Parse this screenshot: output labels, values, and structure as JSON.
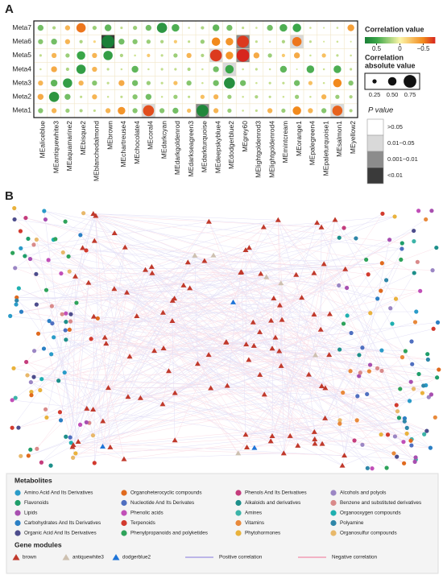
{
  "panel_labels": [
    "A",
    "B"
  ],
  "chart_data": {
    "type": "heatmap",
    "rows": [
      "Meta7",
      "Meta6",
      "Meta5",
      "Meta4",
      "Meta3",
      "Meta2",
      "Meta1"
    ],
    "columns": [
      "MEaliceblue",
      "MEantiquewhite3",
      "MEaquamarine2",
      "MEbisque2",
      "MEblanchedalmond",
      "MEbrown",
      "MEchartreuse4",
      "MEchocolate4",
      "MEcoral4",
      "MEdarkcyan",
      "MEdarkgoldenrod",
      "MEdarkseagreen3",
      "MEdarkturquoise",
      "MEdeepskyblue4",
      "MEdodgerblue2",
      "MEgrey60",
      "MElightgoldenrod3",
      "MElightgoldenrod4",
      "MEmintcream",
      "MEorange1",
      "MEpalegreen4",
      "MEpaleturquoise1",
      "MEsalmon1",
      "MEyellow2"
    ],
    "values": [
      [
        0.35,
        0.2,
        -0.3,
        -0.55,
        0.25,
        0.4,
        0.15,
        0.25,
        0.35,
        0.6,
        0.45,
        0.12,
        0.2,
        0.4,
        0.35,
        0.15,
        0.12,
        0.35,
        0.45,
        0.5,
        0.12,
        0.1,
        0.12,
        -0.4
      ],
      [
        0.3,
        0.35,
        -0.3,
        0.2,
        -0.15,
        0.75,
        0.35,
        0.3,
        0.25,
        0.2,
        -0.2,
        0.15,
        0.25,
        -0.5,
        -0.45,
        -0.7,
        0.15,
        0.12,
        0.2,
        -0.55,
        0.15,
        0.1,
        0.12,
        0.1
      ],
      [
        0.15,
        -0.3,
        0.25,
        0.5,
        -0.3,
        0.55,
        0.2,
        0.12,
        -0.2,
        0.15,
        0.25,
        -0.3,
        0.2,
        -0.7,
        -0.45,
        -0.75,
        -0.35,
        0.25,
        -0.2,
        -0.35,
        0.12,
        -0.25,
        0.15,
        0.12
      ],
      [
        0.12,
        -0.35,
        0.2,
        0.55,
        -0.3,
        0.15,
        0.12,
        0.4,
        0.12,
        0.15,
        0.15,
        0.2,
        0.12,
        0.35,
        0.5,
        0.12,
        0.15,
        0.12,
        0.4,
        0.1,
        0.45,
        0.12,
        0.45,
        0.15
      ],
      [
        -0.3,
        0.4,
        0.55,
        -0.3,
        0.3,
        0.15,
        -0.35,
        0.35,
        0.25,
        0.15,
        -0.25,
        0.3,
        0.12,
        0.35,
        0.65,
        0.35,
        0.12,
        0.15,
        0.15,
        0.35,
        -0.25,
        0.12,
        -0.5,
        0.3
      ],
      [
        -0.35,
        0.6,
        0.35,
        0.15,
        -0.3,
        0.12,
        0.15,
        0.3,
        0.35,
        0.12,
        0.25,
        0.15,
        -0.25,
        -0.3,
        0.25,
        0.12,
        0.2,
        0.15,
        0.12,
        0.25,
        0.12,
        -0.3,
        0.25,
        0.2
      ],
      [
        0.3,
        -0.3,
        0.25,
        0.2,
        0.15,
        -0.3,
        -0.45,
        0.3,
        -0.65,
        0.3,
        0.35,
        -0.25,
        0.7,
        -0.3,
        0.25,
        0.12,
        0.15,
        -0.3,
        0.25,
        -0.5,
        -0.3,
        0.3,
        -0.6,
        0.2
      ]
    ],
    "p_levels": [
      [
        0,
        0,
        0,
        0,
        0,
        0,
        0,
        0,
        0,
        0,
        0,
        0,
        0,
        0,
        0,
        0,
        0,
        0,
        0,
        0,
        0,
        0,
        0,
        0
      ],
      [
        0,
        0,
        0,
        0,
        0,
        3,
        0,
        0,
        0,
        0,
        0,
        0,
        0,
        0,
        0,
        2,
        0,
        0,
        0,
        1,
        0,
        0,
        0,
        0
      ],
      [
        0,
        0,
        0,
        0,
        0,
        0,
        0,
        0,
        0,
        0,
        0,
        0,
        0,
        1,
        0,
        2,
        0,
        0,
        0,
        0,
        0,
        0,
        0,
        0
      ],
      [
        0,
        0,
        0,
        0,
        0,
        0,
        0,
        0,
        0,
        0,
        0,
        0,
        0,
        0,
        1,
        0,
        0,
        0,
        0,
        0,
        0,
        0,
        0,
        0
      ],
      [
        0,
        0,
        0,
        0,
        0,
        0,
        0,
        0,
        0,
        0,
        0,
        0,
        0,
        0,
        0,
        0,
        0,
        0,
        0,
        0,
        0,
        0,
        0,
        0
      ],
      [
        0,
        0,
        0,
        0,
        0,
        0,
        0,
        0,
        0,
        0,
        0,
        0,
        0,
        0,
        0,
        0,
        0,
        0,
        0,
        0,
        0,
        0,
        0,
        0
      ],
      [
        0,
        0,
        0,
        0,
        0,
        0,
        0,
        0,
        1,
        0,
        0,
        0,
        2,
        0,
        0,
        0,
        0,
        0,
        0,
        0,
        0,
        0,
        1,
        0
      ]
    ],
    "colorbar_title": "Correlation value",
    "color_stops": [
      {
        "value": 0.75,
        "color": "#1a7f37"
      },
      {
        "value": 0.5,
        "color": "#3aa648"
      },
      {
        "value": 0,
        "color": "#fbf5a8"
      },
      {
        "value": -0.5,
        "color": "#f28a1c"
      },
      {
        "value": -0.75,
        "color": "#d7261e"
      }
    ],
    "colorbar_lim": [
      0.75,
      -0.75
    ],
    "colorbar_ticks": [
      0.5,
      0,
      {
        "value": -0.5,
        "label": "−0.5"
      }
    ],
    "size_legend": {
      "title": [
        "Correlation",
        "absolute value"
      ],
      "values": [
        0.25,
        0.5,
        0.75
      ],
      "value_labels": [
        "0.25",
        "0.50",
        "0.75"
      ]
    },
    "p_legend": {
      "title": "P value",
      "levels": [
        {
          "label": ">0.05",
          "color": "#ffffff"
        },
        {
          "label": "0.01~0.05",
          "color": "#d9d9d9"
        },
        {
          "label": "0.001~0.01",
          "color": "#8c8c8c"
        },
        {
          "label": "<0.01",
          "color": "#3a3a3a"
        }
      ]
    }
  },
  "network": {
    "metabolites_title": "Metabolites",
    "metabolite_classes": [
      {
        "name": "Amino Acid And Its Derivatives",
        "color": "#2a9bc8"
      },
      {
        "name": "Flavonoids",
        "color": "#1f9e6a"
      },
      {
        "name": "Lipids",
        "color": "#a84fb0"
      },
      {
        "name": "Carbohydrates And Its Derivatives",
        "color": "#2b7fc4"
      },
      {
        "name": "Organic Acid And Its Derivatives",
        "color": "#4d4d8c"
      },
      {
        "name": "Organoheterocyclic compounds",
        "color": "#e06a1e"
      },
      {
        "name": "Nucleotide And Its Derivates",
        "color": "#4f6fc0"
      },
      {
        "name": "Phenolic acids",
        "color": "#c14fb8"
      },
      {
        "name": "Terpenoids",
        "color": "#d23a2e"
      },
      {
        "name": "Phenylpropanoids and polyketides",
        "color": "#2ea35a"
      },
      {
        "name": "Phenols And Its Derivatives",
        "color": "#c43c7c"
      },
      {
        "name": "Alkaloids and derivatives",
        "color": "#1d8f8a"
      },
      {
        "name": "Amines",
        "color": "#3cb4a8"
      },
      {
        "name": "Vitamins",
        "color": "#e8893a"
      },
      {
        "name": "Phytohormones",
        "color": "#e9b23c"
      },
      {
        "name": "Alcohols and polyols",
        "color": "#9b86c4"
      },
      {
        "name": "Benzene and substituted derivatives",
        "color": "#d98a8a"
      },
      {
        "name": "Organooxygen compounds",
        "color": "#1fb0b0"
      },
      {
        "name": "Polyamine",
        "color": "#2e86a8"
      },
      {
        "name": "Organosulfur compounds",
        "color": "#e8b86a"
      }
    ],
    "gene_modules_title": "Gene modules",
    "modules": [
      {
        "name": "brown",
        "color": "#c0392b"
      },
      {
        "name": "antiquewhite3",
        "color": "#cdc0b0"
      },
      {
        "name": "dodgerblue2",
        "color": "#1e74d8"
      }
    ],
    "correlations": [
      {
        "name": "Positive correlation",
        "color": "#9a8fe0"
      },
      {
        "name": "Negative correlation",
        "color": "#f08aa8"
      }
    ]
  }
}
